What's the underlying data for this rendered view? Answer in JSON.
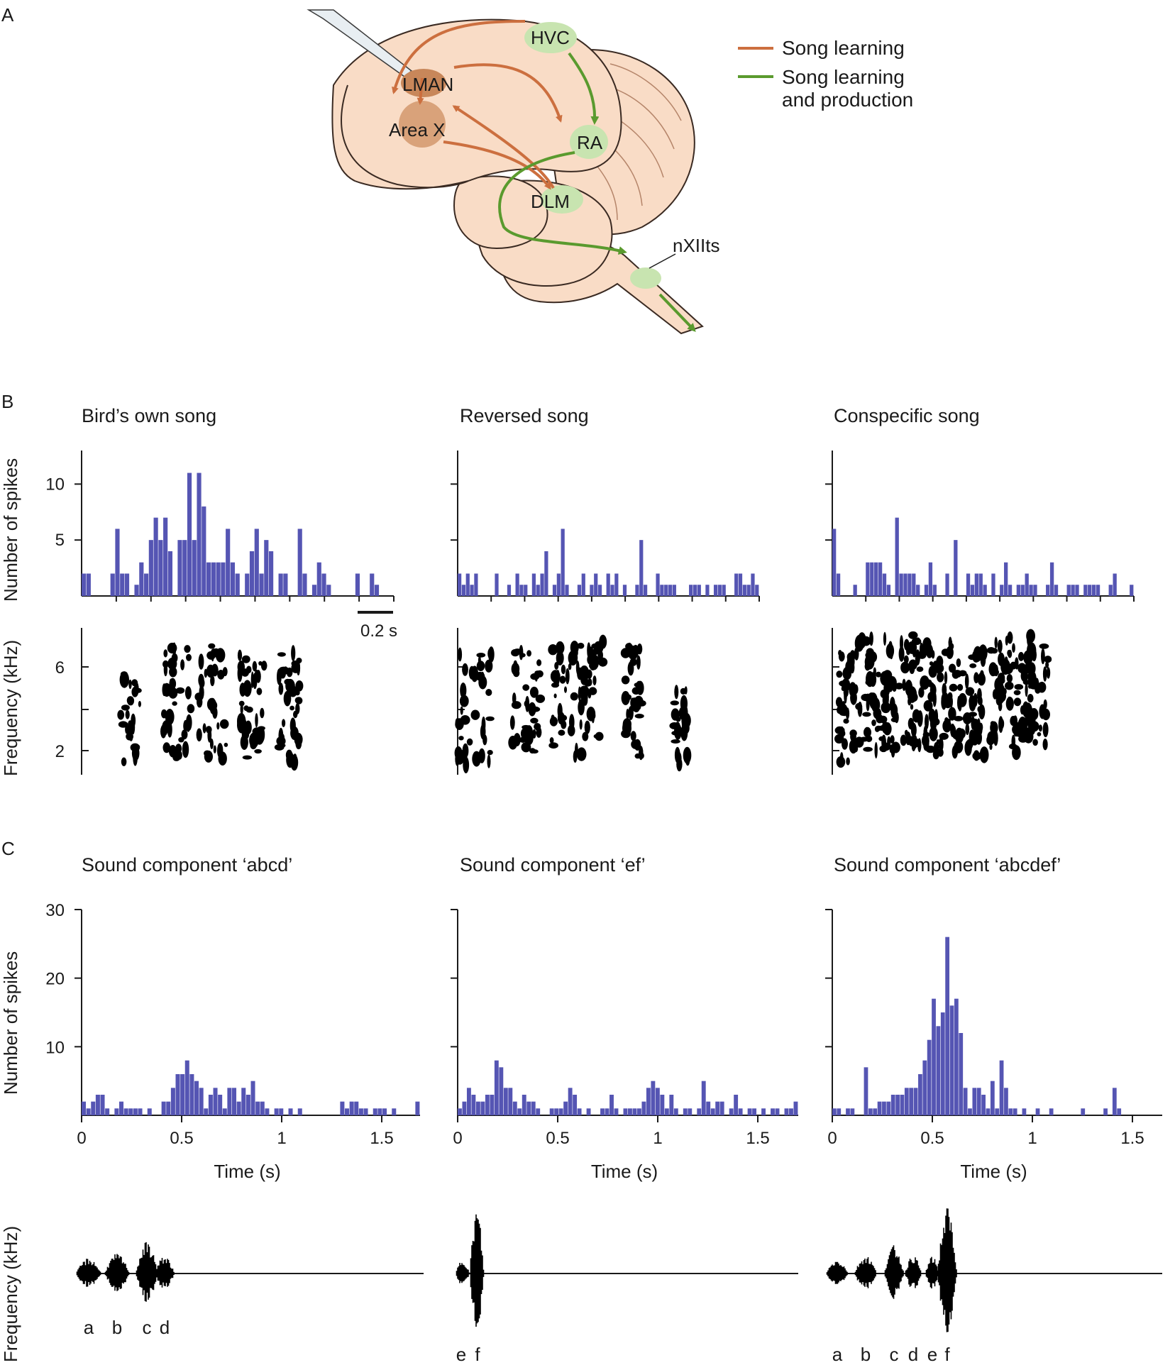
{
  "panels": {
    "A": {
      "letter": "A",
      "regions": {
        "hvc": "HVC",
        "lman": "LMAN",
        "area_x": "Area X",
        "ra": "RA",
        "dlm": "DLM",
        "nxii": "nXIIts"
      },
      "legend": [
        {
          "label_line1": "Song learning",
          "label_line2": "",
          "color": "#cc6f3f"
        },
        {
          "label_line1": "Song learning",
          "label_line2": "and production",
          "color": "#5a9a2e"
        }
      ]
    },
    "B": {
      "letter": "B",
      "titles": [
        "Bird’s own song",
        "Reversed song",
        "Conspecific song"
      ],
      "ylabel_top": "Number of spikes",
      "ylabel_bottom": "Frequency (kHz)",
      "scalebar": "0.2 s",
      "yticks_hist": [
        "5",
        "10"
      ],
      "yticks_spec": [
        "2",
        "6"
      ]
    },
    "C": {
      "letter": "C",
      "titles": [
        "Sound component ‘abcd’",
        "Sound component ‘ef’",
        "Sound component ‘abcdef’"
      ],
      "ylabel": "Number of spikes",
      "ylabel_bottom": "Frequency (kHz)",
      "xlabel": "Time (s)",
      "xticks": [
        "0",
        "0.5",
        "1",
        "1.5"
      ],
      "yticks": [
        "10",
        "20",
        "30"
      ],
      "segments": [
        [
          "a",
          "b",
          "c",
          "d"
        ],
        [
          "e",
          "f"
        ],
        [
          "a",
          "b",
          "c",
          "d",
          "e",
          "f"
        ]
      ]
    }
  },
  "colors": {
    "bar": "#5555b3",
    "brain": "#f9dcc6",
    "brain_outline": "#3a2a22",
    "nucleus_green": "#c8e4b0",
    "nucleus_brown": "#c8875a"
  },
  "chart_data": [
    {
      "type": "bar",
      "panel": "B",
      "title": "Bird’s own song",
      "ylabel": "Number of spikes",
      "ylim": [
        0,
        13
      ],
      "values": [
        2,
        2,
        0,
        0,
        0,
        0,
        2,
        6,
        2,
        2,
        0,
        1,
        3,
        2,
        5,
        7,
        5,
        7,
        4,
        0,
        5,
        5,
        11,
        5,
        11,
        8,
        3,
        3,
        3,
        3,
        6,
        3,
        2,
        0,
        2,
        4,
        6,
        2,
        5,
        4,
        0,
        2,
        2,
        0,
        0,
        6,
        2,
        0,
        1,
        3,
        2,
        1,
        0,
        0,
        0,
        0,
        0,
        2,
        0,
        0,
        2,
        1,
        0,
        0,
        0
      ]
    },
    {
      "type": "bar",
      "panel": "B",
      "title": "Reversed song",
      "ylabel": "Number of spikes",
      "ylim": [
        0,
        13
      ],
      "values": [
        2,
        1,
        2,
        1,
        2,
        0,
        0,
        0,
        0,
        2,
        0,
        0,
        1,
        0,
        2,
        1,
        1,
        0,
        2,
        1,
        2,
        4,
        0,
        1,
        2,
        6,
        1,
        0,
        0,
        1,
        2,
        0,
        1,
        2,
        1,
        0,
        2,
        1,
        2,
        0,
        1,
        0,
        0,
        1,
        5,
        1,
        0,
        0,
        2,
        1,
        1,
        1,
        1,
        0,
        0,
        0,
        1,
        1,
        1,
        0,
        1,
        0,
        1,
        1,
        1,
        0,
        0,
        2,
        2,
        1,
        1,
        2,
        1
      ]
    },
    {
      "type": "bar",
      "panel": "B",
      "title": "Conspecific song",
      "ylabel": "Number of spikes",
      "ylim": [
        0,
        13
      ],
      "values": [
        6,
        2,
        0,
        0,
        0,
        1,
        0,
        0,
        3,
        3,
        3,
        3,
        2,
        1,
        0,
        7,
        2,
        2,
        2,
        2,
        1,
        0,
        1,
        3,
        1,
        0,
        0,
        2,
        0,
        5,
        0,
        0,
        2,
        1,
        2,
        2,
        1,
        0,
        2,
        0,
        1,
        3,
        1,
        0,
        1,
        1,
        2,
        1,
        1,
        0,
        0,
        1,
        3,
        1,
        0,
        0,
        1,
        1,
        1,
        0,
        1,
        1,
        1,
        1,
        0,
        0,
        1,
        2,
        0,
        0,
        0,
        1
      ]
    },
    {
      "type": "bar",
      "panel": "C",
      "title": "Sound component ‘abcd’",
      "xlabel": "Time (s)",
      "ylabel": "Number of spikes",
      "xlim": [
        0,
        1.7
      ],
      "ylim": [
        0,
        30
      ],
      "values": [
        2,
        1,
        2,
        3,
        3,
        1,
        0,
        1,
        2,
        1,
        1,
        1,
        1,
        0,
        1,
        0,
        0,
        2,
        2,
        4,
        6,
        6,
        8,
        6,
        5,
        4,
        1,
        3,
        4,
        3,
        1,
        4,
        4,
        2,
        4,
        3,
        5,
        2,
        2,
        1,
        0,
        1,
        1,
        0,
        1,
        0,
        1,
        0,
        0,
        0,
        0,
        0,
        0,
        0,
        0,
        2,
        1,
        2,
        2,
        1,
        1,
        0,
        1,
        1,
        1,
        0,
        1,
        0,
        0,
        0,
        0,
        2
      ]
    },
    {
      "type": "bar",
      "panel": "C",
      "title": "Sound component ‘ef’",
      "xlabel": "Time (s)",
      "ylabel": "Number of spikes",
      "xlim": [
        0,
        1.7
      ],
      "ylim": [
        0,
        30
      ],
      "values": [
        1,
        2,
        4,
        3,
        2,
        2,
        3,
        3,
        8,
        7,
        4,
        4,
        2,
        1,
        3,
        2,
        2,
        1,
        0,
        0,
        1,
        1,
        1,
        2,
        4,
        3,
        1,
        0,
        1,
        0,
        0,
        1,
        1,
        3,
        1,
        0,
        1,
        1,
        1,
        1,
        2,
        4,
        5,
        4,
        3,
        1,
        3,
        1,
        0,
        1,
        1,
        0,
        1,
        5,
        2,
        1,
        2,
        2,
        0,
        1,
        3,
        1,
        0,
        1,
        1,
        0,
        1,
        0,
        1,
        1,
        0,
        1,
        1,
        2
      ]
    },
    {
      "type": "bar",
      "panel": "C",
      "title": "Sound component ‘abcdef’",
      "xlabel": "Time (s)",
      "ylabel": "Number of spikes",
      "xlim": [
        0,
        1.65
      ],
      "ylim": [
        0,
        30
      ],
      "values": [
        1,
        1,
        0,
        1,
        1,
        0,
        0,
        7,
        1,
        1,
        2,
        2,
        2,
        3,
        3,
        3,
        4,
        4,
        4,
        6,
        8,
        11,
        17,
        13,
        15,
        26,
        16,
        17,
        12,
        4,
        1,
        4,
        4,
        3,
        1,
        5,
        1,
        8,
        4,
        1,
        1,
        0,
        1,
        0,
        0,
        1,
        0,
        0,
        1,
        0,
        0,
        0,
        0,
        0,
        0,
        1,
        0,
        0,
        0,
        0,
        1,
        0,
        4,
        1,
        0,
        0,
        0,
        0,
        0,
        0,
        0,
        0,
        0
      ]
    }
  ]
}
